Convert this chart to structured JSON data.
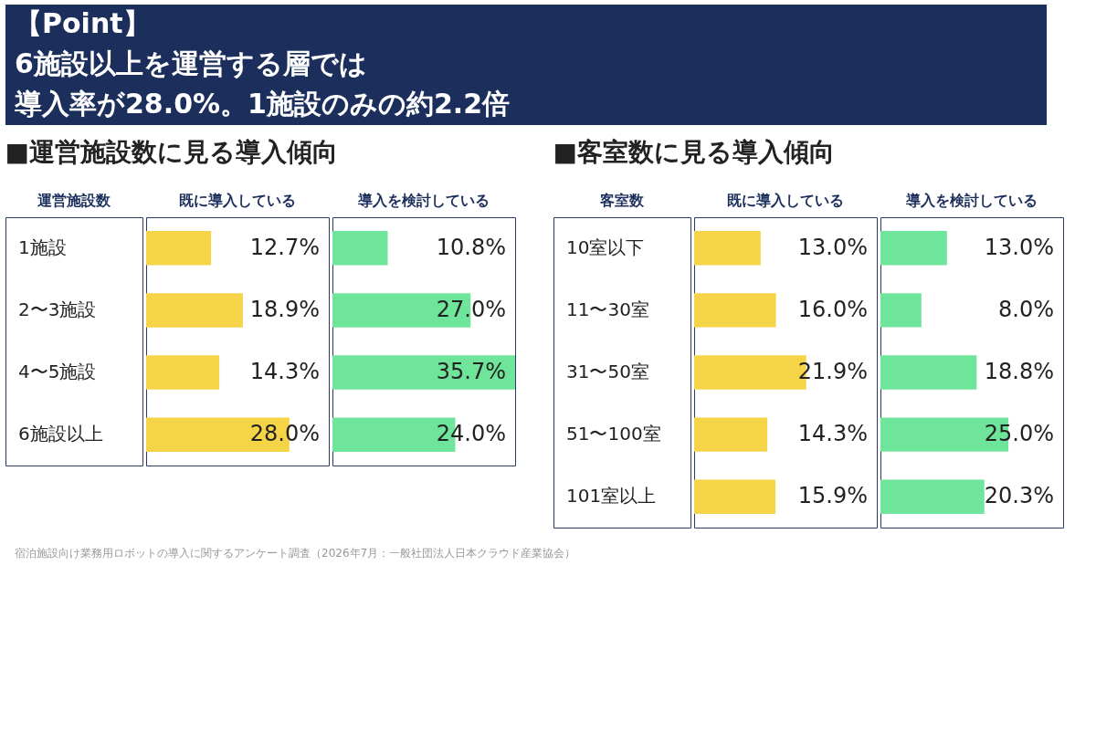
{
  "chart_data": [
    {
      "type": "bar",
      "orientation": "horizontal",
      "title": "■運営施設数に見る導入傾向",
      "ylabel": "運営施設数",
      "annotations": [
        "【Point】",
        "6施設以上を運営する層では",
        "導入率が28.0%。1施設のみの約2.2倍"
      ],
      "categories": [
        "1施設",
        "2〜3施設",
        "4〜5施設",
        "6施設以上"
      ],
      "series": [
        {
          "name": "既に導入している",
          "color": "#f5d547",
          "values": [
            12.7,
            18.9,
            14.3,
            28.0
          ],
          "value_labels": [
            "12.7%",
            "18.9%",
            "14.3%",
            "28.0%"
          ]
        }
      ]
    },
    {
      "type": "bar",
      "orientation": "horizontal",
      "tick_labels": false,
      "categories": [
        null,
        null,
        null,
        null
      ],
      "series": [
        {
          "name": "導入を検討している",
          "color": "#6ee59a",
          "values": [
            10.8,
            27.0,
            35.7,
            24.0
          ],
          "value_labels": [
            "10.8%",
            "27.0%",
            "35.7%",
            "24.0%"
          ]
        }
      ]
    },
    {
      "type": "bar",
      "orientation": "horizontal",
      "title": "■客室数に見る導入傾向",
      "ylabel": "客室数",
      "categories": [
        "10室以下",
        "11〜30室",
        "31〜50室",
        "51〜100室",
        "101室以上"
      ],
      "series": [
        {
          "name": "既に導入している",
          "color": "#f5d547",
          "values": [
            13.0,
            16.0,
            21.9,
            14.3,
            15.9
          ],
          "value_labels": [
            "13.0%",
            "16.0%",
            "21.9%",
            "14.3%",
            "15.9%"
          ]
        }
      ]
    },
    {
      "type": "bar",
      "orientation": "horizontal",
      "tick_labels": false,
      "annotations": [
        "宿泊施設向け業務用ロボットの導入に関するアンケート調査（2026年7月：一般社団法人日本クラウド産業協会）"
      ],
      "categories": [
        null,
        null,
        null,
        null,
        null
      ],
      "series": [
        {
          "name": "導入を検討している",
          "color": "#6ee59a",
          "values": [
            13.0,
            8.0,
            18.8,
            25.0,
            20.3
          ],
          "value_labels": [
            "13.0%",
            "8.0%",
            "18.8%",
            "25.0%",
            "20.3%"
          ]
        }
      ]
    }
  ]
}
